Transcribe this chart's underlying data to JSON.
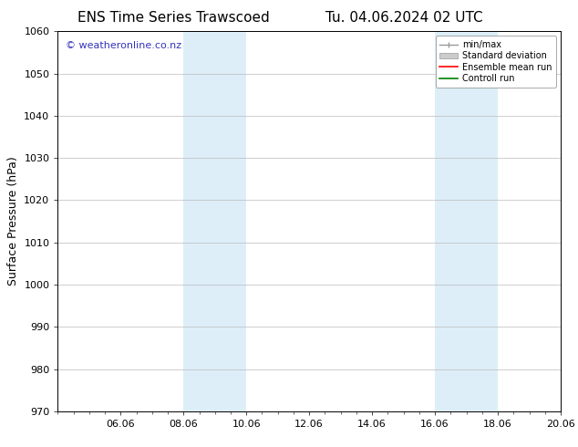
{
  "title_left": "ENS Time Series Trawscoed",
  "title_right": "Tu. 04.06.2024 02 UTC",
  "ylabel": "Surface Pressure (hPa)",
  "ylim": [
    970,
    1060
  ],
  "yticks": [
    970,
    980,
    990,
    1000,
    1010,
    1020,
    1030,
    1040,
    1050,
    1060
  ],
  "xtick_labels": [
    "06.06",
    "08.06",
    "10.06",
    "12.06",
    "14.06",
    "16.06",
    "18.06",
    "20.06"
  ],
  "xtick_positions": [
    2,
    4,
    6,
    8,
    10,
    12,
    14,
    16
  ],
  "x_min": 0,
  "x_max": 16,
  "shaded_bands": [
    {
      "x_start": 4,
      "x_end": 6
    },
    {
      "x_start": 12,
      "x_end": 14
    }
  ],
  "shaded_color": "#ddeef8",
  "background_color": "#ffffff",
  "watermark_text": "© weatheronline.co.nz",
  "watermark_color": "#3333bb",
  "legend_entries": [
    {
      "label": "min/max",
      "color": "#aaaaaa",
      "style": "minmax"
    },
    {
      "label": "Standard deviation",
      "color": "#cccccc",
      "style": "fill"
    },
    {
      "label": "Ensemble mean run",
      "color": "#ff0000",
      "style": "line"
    },
    {
      "label": "Controll run",
      "color": "#008000",
      "style": "line"
    }
  ],
  "grid_color": "#bbbbbb",
  "title_fontsize": 11,
  "axis_fontsize": 9,
  "tick_fontsize": 8,
  "watermark_fontsize": 8,
  "legend_fontsize": 7
}
